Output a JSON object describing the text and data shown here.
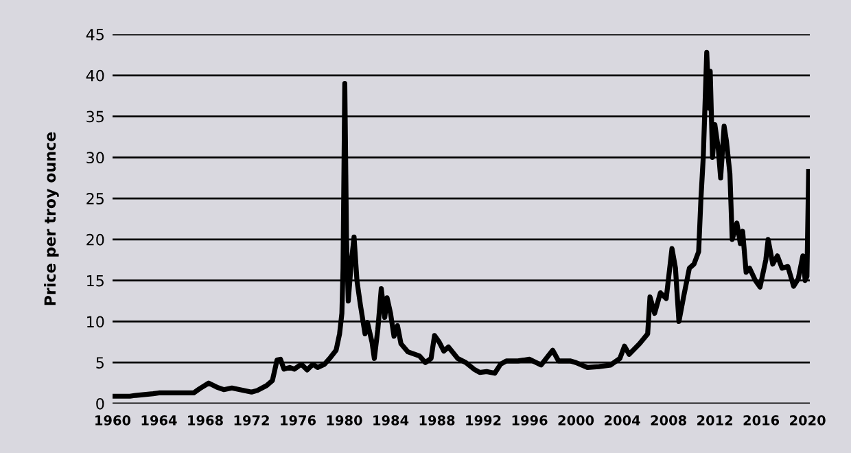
{
  "chart_data": {
    "type": "line",
    "ylabel": "Price per troy ounce",
    "xlim": [
      1960,
      2020.2
    ],
    "xticks": [
      1960,
      1964,
      1968,
      1972,
      1976,
      1980,
      1984,
      1988,
      1992,
      1996,
      2000,
      2004,
      2008,
      2012,
      2016,
      2020
    ],
    "ylim": [
      0,
      45
    ],
    "yticks": [
      0,
      5,
      10,
      15,
      20,
      25,
      30,
      35,
      40,
      45
    ],
    "grid": "y",
    "marker": "none",
    "line_style": "solid",
    "series": [
      {
        "color": "#000000",
        "x": [
          1960,
          1961.5,
          1962,
          1963.5,
          1964,
          1967,
          1967.5,
          1968.3,
          1969,
          1969.6,
          1970.3,
          1971,
          1972,
          1972.5,
          1973.3,
          1973.8,
          1974.2,
          1974.5,
          1974.8,
          1975.3,
          1975.7,
          1976.3,
          1976.8,
          1977.3,
          1977.7,
          1978.3,
          1978.8,
          1979.3,
          1979.6,
          1979.8,
          1979.9,
          1980.05,
          1980.2,
          1980.35,
          1980.6,
          1980.85,
          1981.1,
          1981.4,
          1981.8,
          1982.0,
          1982.4,
          1982.6,
          1982.9,
          1983.2,
          1983.5,
          1983.7,
          1984.0,
          1984.3,
          1984.6,
          1984.9,
          1985.5,
          1986.5,
          1987.0,
          1987.5,
          1987.8,
          1988.2,
          1988.6,
          1989.0,
          1989.8,
          1990.5,
          1991.2,
          1991.7,
          1992.3,
          1993.0,
          1993.5,
          1994.0,
          1995.0,
          1996.0,
          1997.0,
          1998.0,
          1998.5,
          1999.5,
          2000.0,
          2001.0,
          2002.0,
          2003.0,
          2003.8,
          2004.2,
          2004.6,
          2005.5,
          2006.2,
          2006.4,
          2006.8,
          2007.3,
          2007.8,
          2008.3,
          2008.6,
          2008.9,
          2009.3,
          2009.8,
          2010.2,
          2010.6,
          2010.8,
          2011.0,
          2011.3,
          2011.5,
          2011.6,
          2011.8,
          2012.0,
          2012.3,
          2012.5,
          2012.8,
          2013.0,
          2013.3,
          2013.5,
          2013.9,
          2014.2,
          2014.4,
          2014.7,
          2015.0,
          2015.5,
          2015.9,
          2016.4,
          2016.6,
          2017.0,
          2017.4,
          2017.8,
          2018.3,
          2018.8,
          2019.2,
          2019.6,
          2019.8,
          2019.95,
          2020.1
        ],
        "values": [
          0.9,
          0.9,
          1.0,
          1.2,
          1.3,
          1.3,
          1.8,
          2.5,
          2.0,
          1.7,
          1.9,
          1.7,
          1.4,
          1.6,
          2.2,
          2.8,
          5.3,
          5.4,
          4.2,
          4.4,
          4.2,
          4.8,
          4.1,
          4.8,
          4.4,
          4.8,
          5.6,
          6.5,
          8.5,
          11,
          16.5,
          39,
          20,
          12.5,
          17,
          20.3,
          15,
          12,
          8.5,
          9.9,
          7.5,
          5.5,
          9,
          14,
          10.5,
          12.9,
          11,
          8.2,
          9.5,
          7.3,
          6.3,
          5.8,
          5.0,
          5.5,
          8.3,
          7.5,
          6.4,
          6.9,
          5.5,
          5.0,
          4.2,
          3.8,
          3.9,
          3.7,
          4.8,
          5.2,
          5.2,
          5.4,
          4.7,
          6.5,
          5.2,
          5.2,
          5.0,
          4.4,
          4.5,
          4.7,
          5.5,
          7.0,
          6.0,
          7.3,
          8.5,
          13.0,
          11.0,
          13.5,
          12.8,
          18.9,
          16.5,
          10.0,
          13.0,
          16.5,
          17.0,
          18.5,
          25,
          30,
          42.8,
          36,
          40.5,
          30,
          34,
          31,
          27.5,
          33.8,
          32,
          28,
          20,
          22,
          19.5,
          21,
          16,
          16.5,
          15,
          14.2,
          17.5,
          20.0,
          17,
          18,
          16.5,
          16.7,
          14.3,
          15.2,
          18.0,
          15,
          15.5,
          28.3
        ]
      }
    ]
  }
}
